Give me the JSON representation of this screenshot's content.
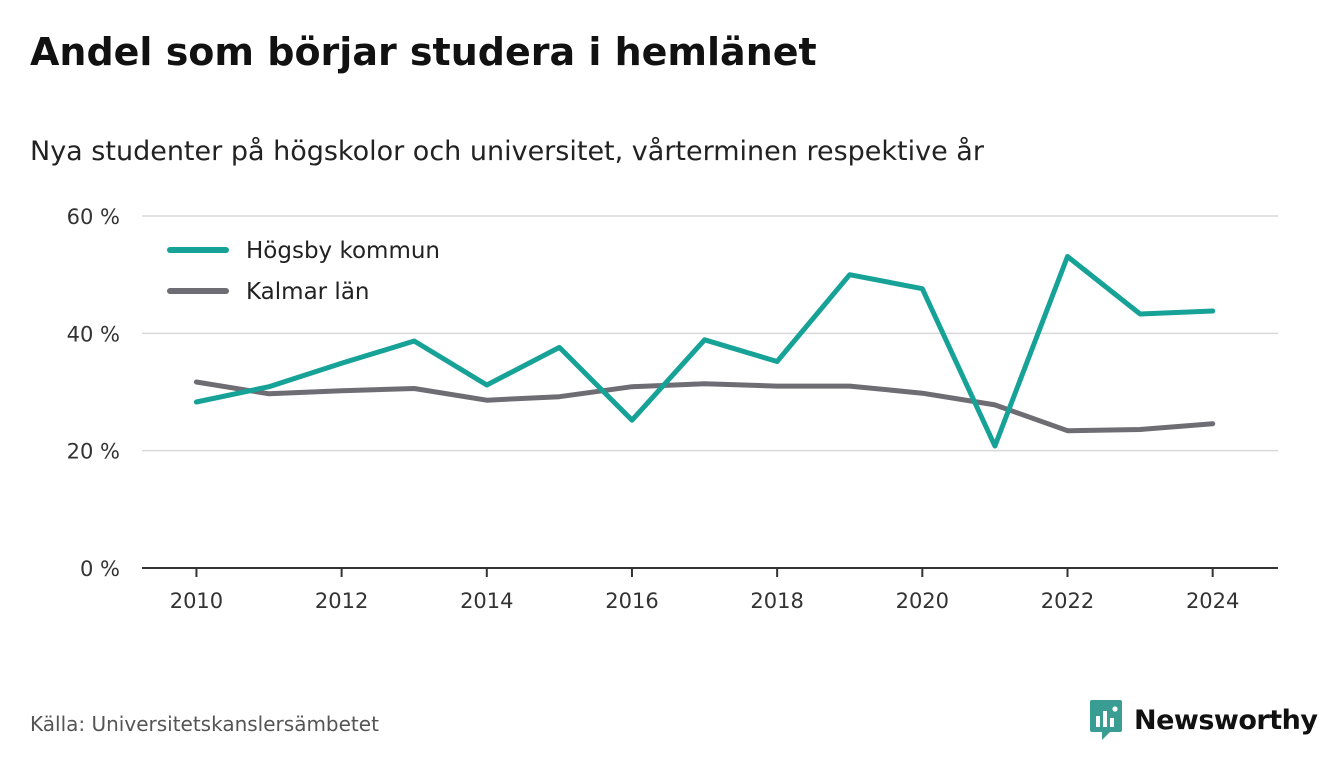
{
  "title": "Andel som börjar studera i hemlänet",
  "subtitle": "Nya studenter på högskolor och universitet, vårterminen respektive år",
  "source": "Källa: Universitetskanslersämbetet",
  "brand": {
    "name": "Newsworthy",
    "icon": "newsworthy-logo-icon",
    "color": "#3a9d93"
  },
  "chart_data": {
    "type": "line",
    "x": [
      2010,
      2011,
      2012,
      2013,
      2014,
      2015,
      2016,
      2017,
      2018,
      2019,
      2020,
      2021,
      2022,
      2023,
      2024
    ],
    "x_ticks": [
      "2010",
      "2012",
      "2014",
      "2016",
      "2018",
      "2020",
      "2022",
      "2024"
    ],
    "y_ticks": [
      "0 %",
      "20 %",
      "40 %",
      "60 %"
    ],
    "ylim": [
      0,
      60
    ],
    "grid": true,
    "legend_position": "top-left",
    "series": [
      {
        "name": "Högsby kommun",
        "color": "#17a297",
        "values": [
          28.3,
          30.9,
          34.9,
          38.7,
          31.2,
          37.6,
          25.2,
          38.9,
          35.2,
          50.0,
          47.6,
          20.8,
          53.1,
          43.3,
          43.8
        ]
      },
      {
        "name": "Kalmar län",
        "color": "#6e6d74",
        "values": [
          31.7,
          29.7,
          30.2,
          30.6,
          28.6,
          29.2,
          30.9,
          31.4,
          31.0,
          31.0,
          29.8,
          27.8,
          23.4,
          23.6,
          24.6
        ]
      }
    ]
  }
}
